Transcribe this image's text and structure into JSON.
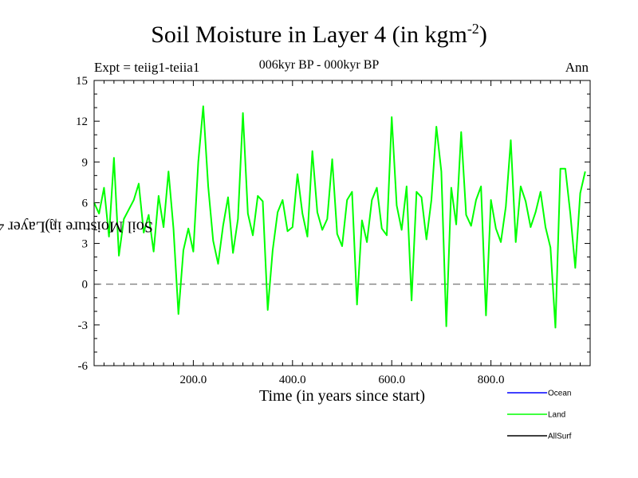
{
  "header": {
    "title": "Soil Moisture in Layer 4 (in kgm",
    "title_sup": "-2",
    "title_close": ")",
    "subtitle": "006kyr BP - 000kyr BP",
    "expt": "Expt = teiig1-teiia1",
    "season": "Ann"
  },
  "axes": {
    "xlabel": "Time (in years since start)",
    "ylabel": "Soil Moisture in Layer 4 (in kgm",
    "ylabel_sup": "-2",
    "ylabel_close": ")"
  },
  "chart_data": {
    "type": "line",
    "title": "Soil Moisture in Layer 4 (in kgm-2)",
    "subtitle": "006kyr BP - 000kyr BP",
    "xlabel": "Time (in years since start)",
    "ylabel": "Soil Moisture in Layer 4 (in kgm-2)",
    "xlim": [
      0,
      1000
    ],
    "ylim": [
      -6,
      15
    ],
    "x_ticks": [
      200,
      400,
      600,
      800
    ],
    "x_tick_labels": [
      "200.0",
      "400.0",
      "600.0",
      "800.0"
    ],
    "y_ticks": [
      -6,
      -3,
      0,
      3,
      6,
      9,
      12,
      15
    ],
    "y_tick_labels": [
      "-6",
      "-3",
      "0",
      "3",
      "6",
      "9",
      "12",
      "15"
    ],
    "reference_line": {
      "y": 0,
      "style": "dashed"
    },
    "legend_position": "bottom-right",
    "grid": false,
    "series": [
      {
        "name": "Ocean",
        "color": "#0000ff",
        "values": []
      },
      {
        "name": "Land",
        "color": "#00ff00",
        "x_step": 10,
        "values": [
          6.0,
          5.2,
          7.1,
          3.5,
          9.3,
          2.1,
          4.8,
          5.5,
          6.2,
          7.4,
          3.8,
          5.1,
          2.4,
          6.5,
          4.2,
          8.3,
          4.1,
          -2.2,
          2.5,
          4.1,
          2.4,
          9.0,
          13.1,
          7.2,
          3.2,
          1.5,
          4.3,
          6.4,
          2.3,
          4.8,
          12.6,
          5.2,
          3.6,
          6.5,
          6.1,
          -1.9,
          2.5,
          5.3,
          6.2,
          3.9,
          4.2,
          8.1,
          5.2,
          3.5,
          9.8,
          5.3,
          4.0,
          4.8,
          9.2,
          3.7,
          2.8,
          6.2,
          6.8,
          -1.5,
          4.7,
          3.1,
          6.2,
          7.1,
          4.1,
          3.6,
          12.3,
          5.8,
          4.0,
          7.2,
          -1.2,
          6.8,
          6.4,
          3.3,
          6.2,
          11.6,
          8.3,
          -3.1,
          7.1,
          4.4,
          11.2,
          5.1,
          4.3,
          6.2,
          7.2,
          -2.3,
          6.2,
          4.1,
          3.1,
          5.7,
          10.6,
          3.1,
          7.2,
          6.1,
          4.2,
          5.3,
          6.8,
          4.2,
          2.7,
          -3.2,
          8.5,
          8.5,
          5.2,
          1.2,
          6.7,
          8.3
        ]
      },
      {
        "name": "AllSurf",
        "color": "#000000",
        "values": []
      }
    ]
  }
}
